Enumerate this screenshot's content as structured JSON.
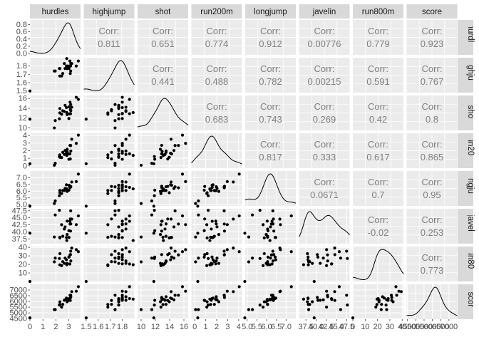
{
  "chart_data": {
    "type": "scatter",
    "variables": [
      "hurdles",
      "highjump",
      "shot",
      "run200m",
      "longjump",
      "javelin",
      "run800m",
      "score"
    ],
    "strip_labels": [
      "hurdles",
      "highjump",
      "shot",
      "run200m",
      "longjump",
      "javelin",
      "run800m",
      "score"
    ],
    "corr_label": "Corr:",
    "corr_matrix": [
      [
        null,
        "0.811",
        "0.651",
        "0.774",
        "0.912",
        "0.00776",
        "0.779",
        "0.923"
      ],
      [
        null,
        null,
        "0.441",
        "0.488",
        "0.782",
        "0.00215",
        "0.591",
        "0.767"
      ],
      [
        null,
        null,
        null,
        "0.683",
        "0.743",
        "0.269",
        "0.42",
        "0.8"
      ],
      [
        null,
        null,
        null,
        null,
        "0.817",
        "0.333",
        "0.617",
        "0.865"
      ],
      [
        null,
        null,
        null,
        null,
        null,
        "0.0671",
        "0.7",
        "0.95"
      ],
      [
        null,
        null,
        null,
        null,
        null,
        null,
        "-0.02",
        "0.253"
      ],
      [
        null,
        null,
        null,
        null,
        null,
        null,
        null,
        "0.773"
      ],
      [
        null,
        null,
        null,
        null,
        null,
        null,
        null,
        null
      ]
    ],
    "ranges": [
      [
        0,
        3.9
      ],
      [
        1.48,
        1.9
      ],
      [
        9.5,
        16.6
      ],
      [
        -0.3,
        4.3
      ],
      [
        4.9,
        7.5
      ],
      [
        35.8,
        48.2
      ],
      [
        0,
        41
      ],
      [
        4450,
        7500
      ]
    ],
    "y_ticks": [
      [
        "0.0",
        "0.2",
        "0.4",
        "0.6",
        "0.8"
      ],
      [
        "1.5",
        "1.6",
        "1.7",
        "1.8"
      ],
      [
        "10",
        "12",
        "14",
        "16"
      ],
      [
        "0",
        "1",
        "2",
        "3",
        "4"
      ],
      [
        "5.0",
        "5.5",
        "6.0",
        "6.5",
        "7.0"
      ],
      [
        "37.5",
        "40.0",
        "42.5",
        "45.0",
        "47.5"
      ],
      [
        "10",
        "20",
        "30",
        "40"
      ],
      [
        "4500",
        "5000",
        "5500",
        "6000",
        "6500",
        "7000"
      ]
    ],
    "x_ticks": [
      [
        "0",
        "1",
        "2",
        "3"
      ],
      [
        "1.5",
        "1.6",
        "1.7",
        "1.8"
      ],
      [
        "10",
        "12",
        "14",
        "16"
      ],
      [
        "0",
        "1",
        "2",
        "3",
        "4"
      ],
      [
        "5.0",
        "5.5",
        "6.0",
        "6.5",
        "7.0"
      ],
      [
        "37.5",
        "40.0",
        "42.5",
        "45.0",
        "47.5"
      ],
      [
        "0",
        "10",
        "20",
        "30",
        "40"
      ],
      [
        "4500",
        "5000",
        "5500",
        "6000",
        "6500",
        "7000"
      ]
    ],
    "observations": [
      [
        3.73,
        1.86,
        15.8,
        4.05,
        7.27,
        45.66,
        34.92,
        7291
      ],
      [
        3.57,
        1.8,
        16.23,
        2.96,
        6.71,
        42.56,
        37.31,
        6897
      ],
      [
        3.22,
        1.83,
        14.2,
        3.51,
        6.68,
        44.54,
        39.23,
        6858
      ],
      [
        3.09,
        1.8,
        15.23,
        2.69,
        6.25,
        42.78,
        31.19,
        6540
      ],
      [
        3.14,
        1.74,
        14.76,
        2.68,
        6.32,
        47.46,
        35.53,
        6540
      ],
      [
        3.15,
        1.83,
        13.5,
        1.96,
        6.33,
        42.82,
        24.08,
        6411
      ],
      [
        3.13,
        1.8,
        12.88,
        2.71,
        6.37,
        40.28,
        31.54,
        6351
      ],
      [
        2.81,
        1.8,
        14.13,
        1.67,
        6.47,
        38.0,
        25.47,
        6297
      ],
      [
        3.01,
        1.77,
        14.28,
        1.58,
        6.44,
        38.02,
        28.66,
        6252
      ],
      [
        3.08,
        1.86,
        12.88,
        1.59,
        6.28,
        43.76,
        20.49,
        6252
      ],
      [
        2.84,
        1.89,
        13.12,
        1.38,
        6.17,
        36.92,
        19.63,
        6205
      ],
      [
        2.87,
        1.8,
        12.95,
        1.91,
        6.03,
        43.82,
        20.67,
        6171
      ],
      [
        2.71,
        1.77,
        14.6,
        2.03,
        6.2,
        41.76,
        27.4,
        6137
      ],
      [
        2.65,
        1.83,
        13.35,
        1.51,
        6.05,
        41.0,
        21.27,
        6109
      ],
      [
        3.0,
        1.8,
        11.91,
        0.87,
        6.07,
        40.42,
        28.56,
        6101
      ],
      [
        3.11,
        1.71,
        13.73,
        0.91,
        6.35,
        44.58,
        31.5,
        6087
      ],
      [
        2.87,
        1.77,
        12.7,
        2.19,
        5.98,
        39.06,
        21.17,
        5975
      ],
      [
        2.31,
        1.77,
        13.95,
        1.13,
        5.88,
        37.86,
        32.62,
        5972
      ],
      [
        2.53,
        1.71,
        13.49,
        1.79,
        6.05,
        38.42,
        23.25,
        5746
      ],
      [
        2.3,
        1.68,
        13.06,
        1.45,
        6.05,
        38.08,
        19.51,
        5734
      ],
      [
        2.27,
        1.77,
        11.86,
        1.23,
        5.66,
        47.65,
        26.93,
        5686
      ],
      [
        2.44,
        1.68,
        12.78,
        1.1,
        5.82,
        42.54,
        18.63,
        5508
      ],
      [
        1.95,
        1.74,
        11.49,
        0.34,
        5.27,
        46.0,
        27.39,
        5290
      ],
      [
        1.88,
        1.74,
        10.0,
        0.08,
        5.08,
        38.16,
        23.0,
        5289
      ],
      [
        0.0,
        1.5,
        11.78,
        0.28,
        4.88,
        39.52,
        0.0,
        4566
      ]
    ],
    "density_peaks": [
      2.95,
      1.82,
      13.3,
      1.7,
      6.3,
      39,
      29,
      6150
    ],
    "background": "#ebebeb",
    "strip_fill": "#d9d9d9",
    "grid_color": "#ffffff",
    "point_color": "#000000",
    "corr_color": "#7f7f7f"
  }
}
